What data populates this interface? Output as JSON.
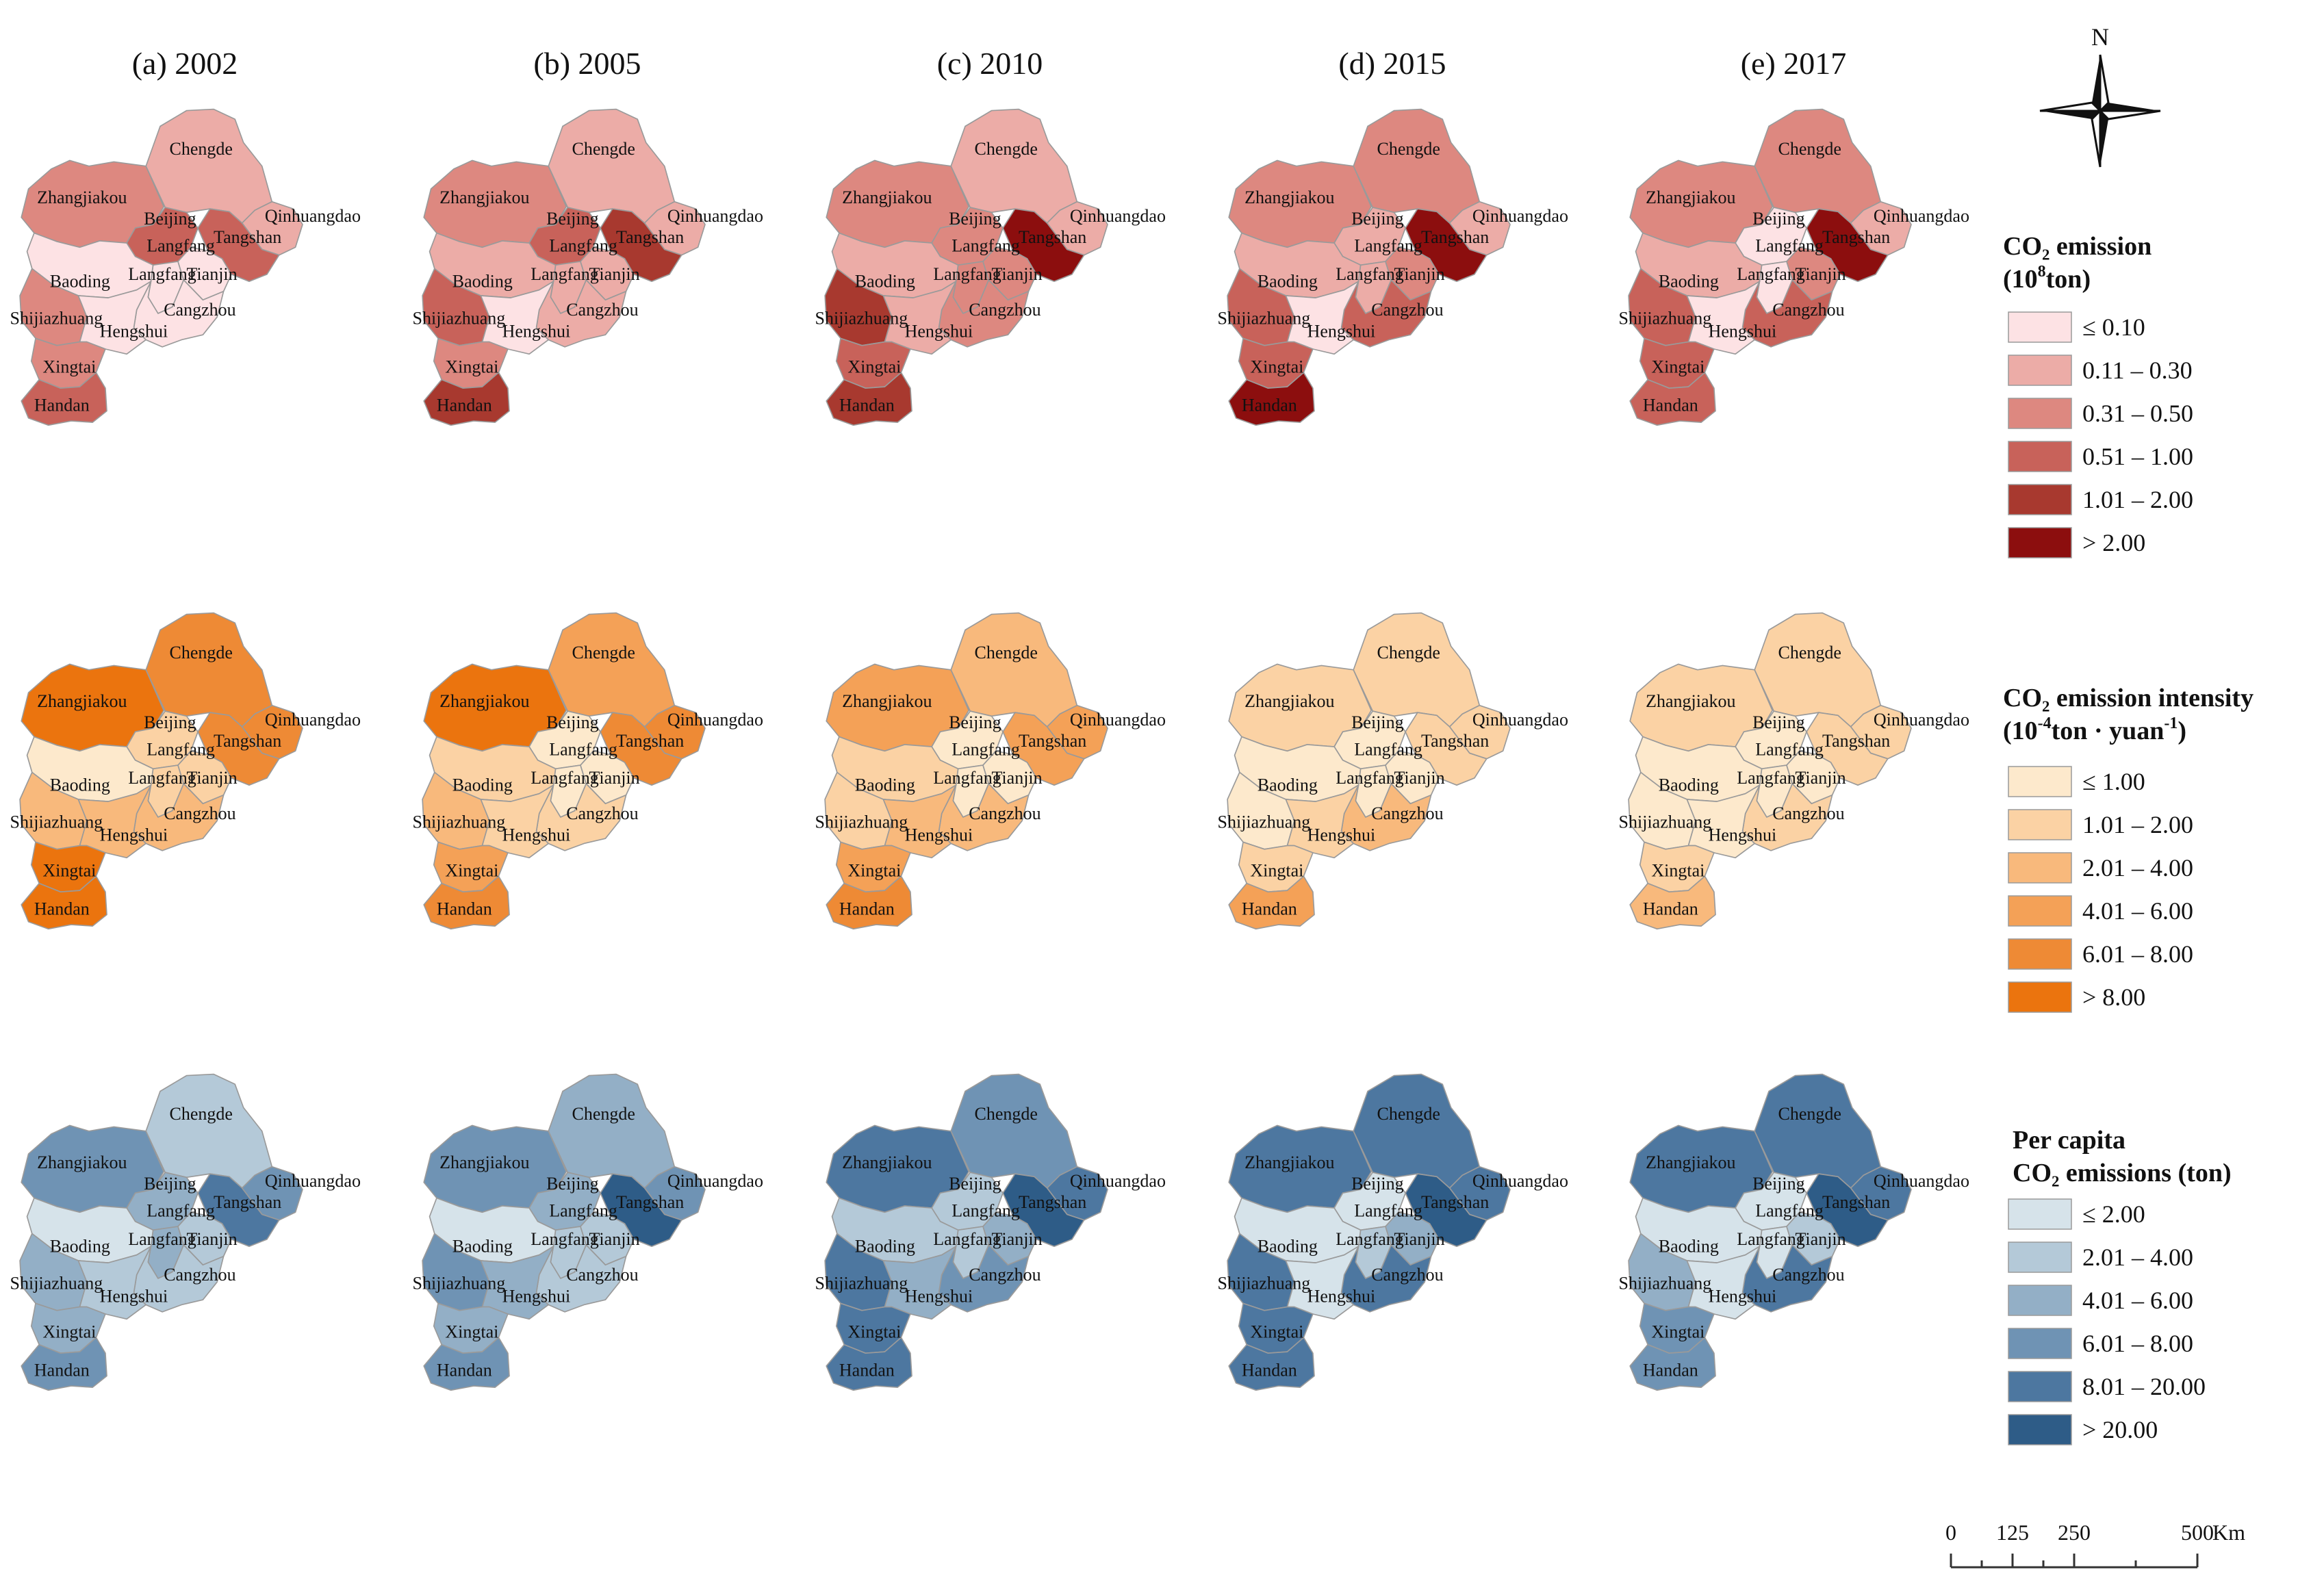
{
  "panel_titles": [
    "(a) 2002",
    "(b) 2005",
    "(c) 2010",
    "(d) 2015",
    "(e) 2017"
  ],
  "cities": [
    "Zhangjiakou",
    "Chengde",
    "Beijing",
    "Langfang",
    "Qinhuangdao",
    "Tangshan",
    "Tianjin",
    "Baoding",
    "Cangzhou",
    "Shijiazhuang",
    "Hengshui",
    "Xingtai",
    "Handan"
  ],
  "labels": {
    "Zhangjiakou": "Zhangjiakou",
    "Chengde": "Chengde",
    "Beijing": "Beijing",
    "Langfang": "Langfang",
    "Qinhuangdao": "Qinhuangdao",
    "Tangshan": "Tangshan",
    "Tianjin": "Tianjin",
    "Baoding": "Baoding",
    "Cangzhou": "Cangzhou",
    "Shijiazhuang": "Shijiazhuang",
    "Hengshui": "Hengshui",
    "Xingtai": "Xingtai",
    "Handan": "Handan"
  },
  "rows": [
    {
      "key": "emission",
      "legend_title_line1": "CO₂ emission",
      "legend_title_line2": "(10",
      "legend_title_line2_sup": "8",
      "legend_title_line2_end": "ton)",
      "colors": [
        "#fde2e4",
        "#ecaca7",
        "#dd8880",
        "#c8625a",
        "#a8392f",
        "#8c0e0e"
      ],
      "classes": [
        "≤ 0.10",
        "0.11 – 0.30",
        "0.31 – 0.50",
        "0.51 – 1.00",
        "1.01 – 2.00",
        "> 2.00"
      ],
      "years": [
        {
          "Zhangjiakou": 2,
          "Chengde": 1,
          "Beijing": 3,
          "Langfang": 0,
          "Qinhuangdao": 1,
          "Tangshan": 3,
          "Tianjin": 0,
          "Baoding": 0,
          "Cangzhou": 0,
          "Shijiazhuang": 2,
          "Hengshui": 0,
          "Xingtai": 2,
          "Handan": 3
        },
        {
          "Zhangjiakou": 2,
          "Chengde": 1,
          "Beijing": 3,
          "Langfang": 1,
          "Qinhuangdao": 1,
          "Tangshan": 4,
          "Tianjin": 1,
          "Baoding": 1,
          "Cangzhou": 1,
          "Shijiazhuang": 3,
          "Hengshui": 0,
          "Xingtai": 2,
          "Handan": 4
        },
        {
          "Zhangjiakou": 2,
          "Chengde": 1,
          "Beijing": 2,
          "Langfang": 2,
          "Qinhuangdao": 1,
          "Tangshan": 5,
          "Tianjin": 2,
          "Baoding": 1,
          "Cangzhou": 2,
          "Shijiazhuang": 4,
          "Hengshui": 1,
          "Xingtai": 3,
          "Handan": 4
        },
        {
          "Zhangjiakou": 2,
          "Chengde": 2,
          "Beijing": 1,
          "Langfang": 1,
          "Qinhuangdao": 1,
          "Tangshan": 5,
          "Tianjin": 2,
          "Baoding": 1,
          "Cangzhou": 3,
          "Shijiazhuang": 3,
          "Hengshui": 0,
          "Xingtai": 3,
          "Handan": 5
        },
        {
          "Zhangjiakou": 2,
          "Chengde": 2,
          "Beijing": 0,
          "Langfang": 0,
          "Qinhuangdao": 1,
          "Tangshan": 5,
          "Tianjin": 2,
          "Baoding": 1,
          "Cangzhou": 3,
          "Shijiazhuang": 3,
          "Hengshui": 0,
          "Xingtai": 3,
          "Handan": 3
        }
      ]
    },
    {
      "key": "intensity",
      "legend_title_line1": "CO₂ emission intensity",
      "legend_title_line2": "(10",
      "legend_title_line2_sup": "-4",
      "legend_title_line2_mid": "ton · yuan",
      "legend_title_line2_sup2": "-1",
      "legend_title_line2_end": ")",
      "colors": [
        "#fde9cc",
        "#fbd2a4",
        "#f8b97c",
        "#f4a157",
        "#ee8a35",
        "#eb740e"
      ],
      "classes": [
        "≤ 1.00",
        "1.01 – 2.00",
        "2.01 – 4.00",
        "4.01 – 6.00",
        "6.01 – 8.00",
        "> 8.00"
      ],
      "years": [
        {
          "Zhangjiakou": 5,
          "Chengde": 4,
          "Beijing": 1,
          "Langfang": 1,
          "Qinhuangdao": 4,
          "Tangshan": 4,
          "Tianjin": 1,
          "Baoding": 0,
          "Cangzhou": 2,
          "Shijiazhuang": 2,
          "Hengshui": 2,
          "Xingtai": 5,
          "Handan": 5
        },
        {
          "Zhangjiakou": 5,
          "Chengde": 3,
          "Beijing": 0,
          "Langfang": 0,
          "Qinhuangdao": 4,
          "Tangshan": 4,
          "Tianjin": 0,
          "Baoding": 1,
          "Cangzhou": 1,
          "Shijiazhuang": 2,
          "Hengshui": 1,
          "Xingtai": 3,
          "Handan": 4
        },
        {
          "Zhangjiakou": 3,
          "Chengde": 2,
          "Beijing": 0,
          "Langfang": 0,
          "Qinhuangdao": 3,
          "Tangshan": 3,
          "Tianjin": 0,
          "Baoding": 1,
          "Cangzhou": 2,
          "Shijiazhuang": 1,
          "Hengshui": 2,
          "Xingtai": 3,
          "Handan": 4
        },
        {
          "Zhangjiakou": 1,
          "Chengde": 1,
          "Beijing": 0,
          "Langfang": 0,
          "Qinhuangdao": 1,
          "Tangshan": 1,
          "Tianjin": 0,
          "Baoding": 0,
          "Cangzhou": 2,
          "Shijiazhuang": 0,
          "Hengshui": 1,
          "Xingtai": 1,
          "Handan": 3
        },
        {
          "Zhangjiakou": 1,
          "Chengde": 1,
          "Beijing": 0,
          "Langfang": 0,
          "Qinhuangdao": 1,
          "Tangshan": 1,
          "Tianjin": 0,
          "Baoding": 0,
          "Cangzhou": 1,
          "Shijiazhuang": 0,
          "Hengshui": 0,
          "Xingtai": 1,
          "Handan": 2
        }
      ]
    },
    {
      "key": "percapita",
      "legend_title_line1": "Per capita",
      "legend_title_line2": "CO₂ emissions (ton)",
      "colors": [
        "#d6e3ea",
        "#b4c9d8",
        "#93afc6",
        "#6f93b4",
        "#4d77a0",
        "#2e5c87"
      ],
      "classes": [
        "≤ 2.00",
        "2.01 – 4.00",
        "4.01 – 6.00",
        "6.01 – 8.00",
        "8.01 – 20.00",
        "> 20.00"
      ],
      "years": [
        {
          "Zhangjiakou": 3,
          "Chengde": 1,
          "Beijing": 2,
          "Langfang": 2,
          "Qinhuangdao": 3,
          "Tangshan": 4,
          "Tianjin": 1,
          "Baoding": 0,
          "Cangzhou": 1,
          "Shijiazhuang": 2,
          "Hengshui": 1,
          "Xingtai": 2,
          "Handan": 3
        },
        {
          "Zhangjiakou": 3,
          "Chengde": 2,
          "Beijing": 2,
          "Langfang": 1,
          "Qinhuangdao": 3,
          "Tangshan": 5,
          "Tianjin": 1,
          "Baoding": 0,
          "Cangzhou": 1,
          "Shijiazhuang": 3,
          "Hengshui": 2,
          "Xingtai": 2,
          "Handan": 3
        },
        {
          "Zhangjiakou": 4,
          "Chengde": 3,
          "Beijing": 1,
          "Langfang": 1,
          "Qinhuangdao": 4,
          "Tangshan": 5,
          "Tianjin": 2,
          "Baoding": 1,
          "Cangzhou": 3,
          "Shijiazhuang": 4,
          "Hengshui": 2,
          "Xingtai": 4,
          "Handan": 4
        },
        {
          "Zhangjiakou": 4,
          "Chengde": 4,
          "Beijing": 0,
          "Langfang": 1,
          "Qinhuangdao": 4,
          "Tangshan": 5,
          "Tianjin": 2,
          "Baoding": 0,
          "Cangzhou": 4,
          "Shijiazhuang": 4,
          "Hengshui": 0,
          "Xingtai": 4,
          "Handan": 4
        },
        {
          "Zhangjiakou": 4,
          "Chengde": 4,
          "Beijing": 0,
          "Langfang": 0,
          "Qinhuangdao": 4,
          "Tangshan": 5,
          "Tianjin": 1,
          "Baoding": 0,
          "Cangzhou": 4,
          "Shijiazhuang": 2,
          "Hengshui": 0,
          "Xingtai": 3,
          "Handan": 3
        }
      ]
    }
  ],
  "north_label": "N",
  "scale_bar": {
    "ticks": [
      "0",
      "125",
      "250",
      "500"
    ],
    "unit": "Km"
  }
}
